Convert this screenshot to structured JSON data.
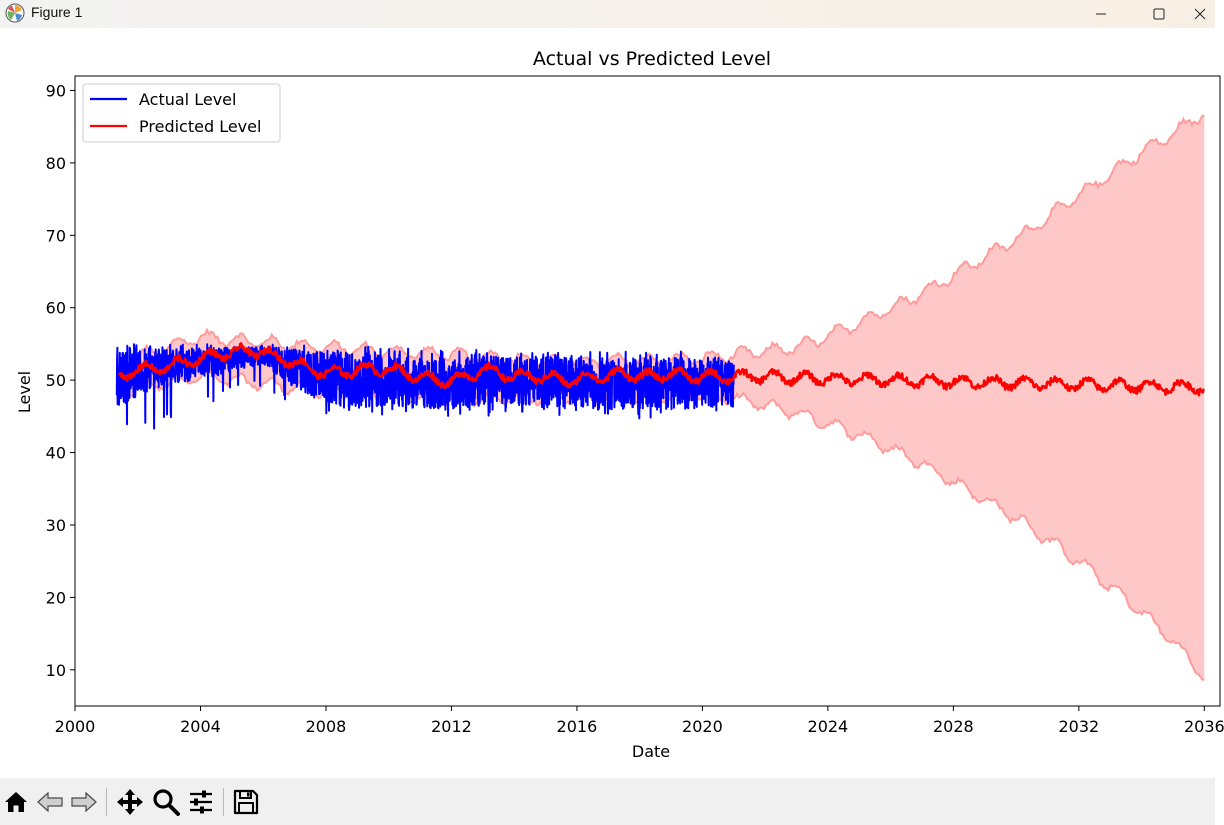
{
  "window": {
    "title": "Figure 1",
    "app_icon": "matplotlib-icon",
    "controls": [
      "minimize-icon",
      "maximize-icon",
      "close-icon"
    ]
  },
  "toolbar": {
    "tools": [
      "home-icon",
      "back-arrow-icon",
      "forward-arrow-icon",
      "pan-move-icon",
      "zoom-magnifier-icon",
      "configure-subplots-icon",
      "save-floppy-icon"
    ]
  },
  "chart_data": {
    "type": "line",
    "title": "Actual vs Predicted Level",
    "xlabel": "Date",
    "ylabel": "Level",
    "xlim": [
      "2000-01-01",
      "2036-07-01"
    ],
    "ylim": [
      5,
      92
    ],
    "x_ticks": [
      "2000",
      "2004",
      "2008",
      "2012",
      "2016",
      "2020",
      "2024",
      "2028",
      "2032",
      "2036"
    ],
    "y_ticks": [
      10,
      20,
      30,
      40,
      50,
      60,
      70,
      80,
      90
    ],
    "legend": {
      "placement": "upper-left"
    },
    "grid": false,
    "colors": {
      "actual": "#0000ff",
      "predicted": "#ff0000",
      "band": "#ffc8c8",
      "band_edge": "#ff9b9b"
    },
    "series": [
      {
        "name": "Actual Level",
        "color": "#0000ff",
        "x_range": [
          "2001-05-01",
          "2021-01-01"
        ],
        "x": [
          "2001-06",
          "2002-01",
          "2002-07",
          "2003-01",
          "2003-07",
          "2004-01",
          "2004-07",
          "2005-01",
          "2005-07",
          "2006-01",
          "2006-07",
          "2007-01",
          "2007-07",
          "2008-01",
          "2008-07",
          "2009-01",
          "2009-07",
          "2010-01",
          "2010-07",
          "2011-01",
          "2011-07",
          "2012-01",
          "2012-07",
          "2013-01",
          "2013-07",
          "2014-01",
          "2014-07",
          "2015-01",
          "2015-07",
          "2016-01",
          "2016-07",
          "2017-01",
          "2017-07",
          "2018-01",
          "2018-07",
          "2019-01",
          "2019-07",
          "2020-01",
          "2020-07",
          "2021-01"
        ],
        "y_mean": [
          50,
          51,
          51.5,
          52,
          52,
          52.5,
          52.5,
          53,
          53,
          53.5,
          52.5,
          51.5,
          51,
          50.5,
          50,
          50,
          50,
          50,
          50,
          49.5,
          49.5,
          49.5,
          50,
          50,
          50,
          50,
          49.5,
          49.5,
          49.5,
          49.5,
          49.5,
          49.5,
          49.5,
          49.5,
          49.5,
          49.5,
          49.5,
          49.5,
          49.5,
          49.5
        ],
        "y_min": [
          43,
          43,
          43,
          44,
          46,
          47,
          47,
          48,
          48,
          49,
          47,
          46,
          45,
          45,
          45,
          45,
          45,
          45,
          45,
          45,
          45,
          45,
          45,
          45,
          45,
          45,
          45,
          45,
          45,
          45,
          45,
          45,
          45,
          44,
          45,
          45,
          45,
          45,
          45,
          45
        ],
        "y_max": [
          55,
          55,
          55,
          55,
          55,
          55,
          55,
          55,
          55,
          55,
          55,
          55,
          55,
          55,
          55,
          55,
          54.5,
          54.5,
          54.5,
          54.5,
          54.5,
          54,
          54.5,
          54.5,
          54,
          54,
          54,
          54,
          54,
          54,
          54,
          54,
          54,
          54,
          54,
          54,
          54,
          53.5,
          53.5,
          53.5
        ]
      },
      {
        "name": "Predicted Level",
        "color": "#ff0000",
        "x": [
          "2001-06",
          "2002-01",
          "2002-07",
          "2003-01",
          "2003-07",
          "2004-01",
          "2004-07",
          "2005-01",
          "2005-07",
          "2006-01",
          "2006-07",
          "2007-01",
          "2007-07",
          "2008-01",
          "2008-07",
          "2009-01",
          "2009-07",
          "2010-01",
          "2010-07",
          "2011-01",
          "2011-07",
          "2012-01",
          "2012-07",
          "2013-01",
          "2013-07",
          "2014-01",
          "2014-07",
          "2015-01",
          "2015-07",
          "2016-01",
          "2016-07",
          "2017-01",
          "2017-07",
          "2018-01",
          "2018-07",
          "2019-01",
          "2019-07",
          "2020-01",
          "2020-07",
          "2021-01",
          "2022-01",
          "2023-01",
          "2024-01",
          "2025-01",
          "2026-01",
          "2027-01",
          "2028-01",
          "2029-01",
          "2030-01",
          "2031-01",
          "2032-01",
          "2033-01",
          "2034-01",
          "2035-01",
          "2036-01"
        ],
        "y": [
          50.5,
          51.5,
          51.5,
          52,
          52.5,
          53,
          53.5,
          53.8,
          54,
          54,
          53,
          52.5,
          51.5,
          51,
          51,
          51.5,
          51.5,
          51.5,
          51,
          50.5,
          50,
          50,
          50.5,
          51.5,
          51,
          50.5,
          50.5,
          50.5,
          50,
          50,
          50.5,
          50.5,
          51,
          50.5,
          50.5,
          51,
          50.5,
          50.5,
          50.5,
          50.5,
          50.5,
          50.3,
          50.2,
          50.1,
          50,
          49.9,
          49.8,
          49.7,
          49.6,
          49.5,
          49.4,
          49.3,
          49.2,
          49.1,
          49
        ],
        "band_x": [
          "2001-06",
          "2004-01",
          "2008-01",
          "2012-01",
          "2016-01",
          "2020-01",
          "2021-01",
          "2022-01",
          "2023-01",
          "2024-01",
          "2025-01",
          "2026-01",
          "2027-01",
          "2028-01",
          "2029-01",
          "2030-01",
          "2031-01",
          "2032-01",
          "2033-01",
          "2034-01",
          "2035-01",
          "2036-01"
        ],
        "band_lower": [
          48.5,
          50.5,
          48.5,
          47.5,
          47.5,
          48,
          47.5,
          46.5,
          45.5,
          44,
          42.5,
          40.5,
          38.5,
          36,
          33.5,
          31,
          28,
          25,
          21.5,
          18,
          14,
          9
        ],
        "band_upper": [
          52.5,
          56,
          54.5,
          53.5,
          52.5,
          53,
          53.5,
          54,
          54.5,
          56,
          58,
          60,
          62,
          64.5,
          67,
          69.5,
          72.5,
          75.5,
          78.5,
          81.5,
          84,
          87
        ]
      }
    ]
  }
}
